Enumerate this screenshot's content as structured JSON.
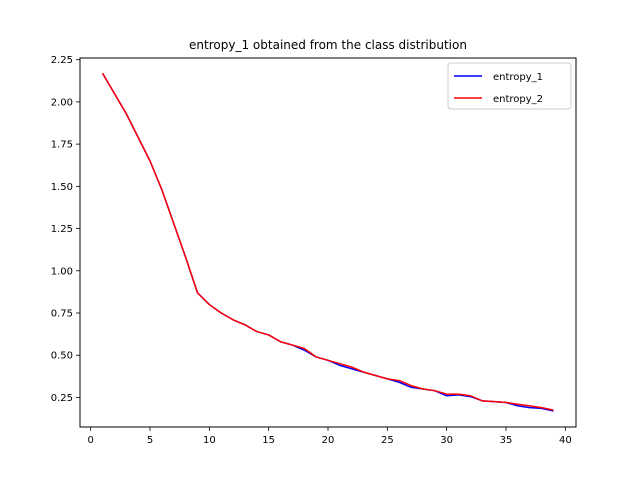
{
  "chart_data": {
    "type": "line",
    "title": "entropy_1 obtained from the class distribution",
    "xlabel": "",
    "ylabel": "",
    "xlim": [
      -0.9,
      40.9
    ],
    "ylim": [
      0.075,
      2.26
    ],
    "xticks": [
      0,
      5,
      10,
      15,
      20,
      25,
      30,
      35,
      40
    ],
    "yticks": [
      0.25,
      0.5,
      0.75,
      1.0,
      1.25,
      1.5,
      1.75,
      2.0,
      2.25
    ],
    "ytick_labels": [
      "0.25",
      "0.50",
      "0.75",
      "1.00",
      "1.25",
      "1.50",
      "1.75",
      "2.00",
      "2.25"
    ],
    "grid": false,
    "legend_position": "top-right",
    "x": [
      1,
      2,
      3,
      4,
      5,
      6,
      7,
      8,
      9,
      10,
      11,
      12,
      13,
      14,
      15,
      16,
      17,
      18,
      19,
      20,
      21,
      22,
      23,
      24,
      25,
      26,
      27,
      28,
      29,
      30,
      31,
      32,
      33,
      34,
      35,
      36,
      37,
      38,
      39
    ],
    "series": [
      {
        "name": "entropy_1",
        "color": "#0000ff",
        "values": [
          2.17,
          2.05,
          1.93,
          1.79,
          1.65,
          1.48,
          1.28,
          1.08,
          0.87,
          0.8,
          0.75,
          0.71,
          0.68,
          0.64,
          0.62,
          0.58,
          0.56,
          0.53,
          0.49,
          0.47,
          0.44,
          0.42,
          0.4,
          0.38,
          0.36,
          0.34,
          0.31,
          0.3,
          0.29,
          0.26,
          0.265,
          0.255,
          0.23,
          0.225,
          0.22,
          0.2,
          0.19,
          0.185,
          0.17
        ]
      },
      {
        "name": "entropy_2",
        "color": "#ff0000",
        "values": [
          2.17,
          2.05,
          1.93,
          1.79,
          1.65,
          1.48,
          1.28,
          1.08,
          0.87,
          0.8,
          0.75,
          0.71,
          0.68,
          0.64,
          0.62,
          0.58,
          0.56,
          0.54,
          0.49,
          0.47,
          0.45,
          0.43,
          0.4,
          0.38,
          0.36,
          0.35,
          0.32,
          0.3,
          0.29,
          0.27,
          0.27,
          0.26,
          0.23,
          0.225,
          0.22,
          0.21,
          0.2,
          0.19,
          0.175
        ]
      }
    ]
  }
}
